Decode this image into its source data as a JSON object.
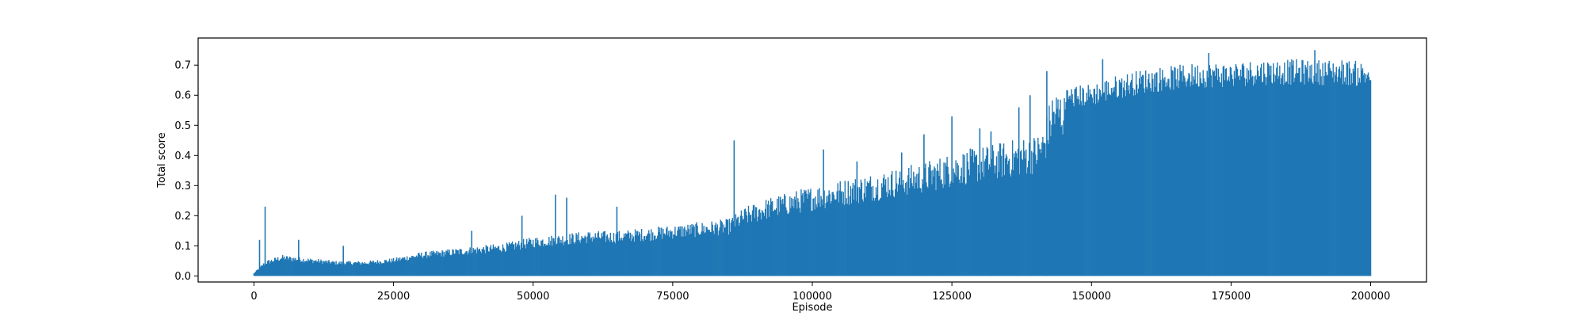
{
  "chart_data": {
    "type": "line",
    "title": "",
    "xlabel": "Episode",
    "ylabel": "Total score",
    "xlim": [
      -10000,
      210000
    ],
    "ylim": [
      -0.02,
      0.79
    ],
    "xticks": [
      0,
      25000,
      50000,
      75000,
      100000,
      125000,
      150000,
      175000,
      200000
    ],
    "xtick_labels": [
      "0",
      "25000",
      "50000",
      "75000",
      "100000",
      "125000",
      "150000",
      "175000",
      "200000"
    ],
    "yticks": [
      0.0,
      0.1,
      0.2,
      0.3,
      0.4,
      0.5,
      0.6,
      0.7
    ],
    "ytick_labels": [
      "0.0",
      "0.1",
      "0.2",
      "0.3",
      "0.4",
      "0.5",
      "0.6",
      "0.7"
    ],
    "grid": false,
    "legend": "none",
    "color": "#1f77b4",
    "episodes": 200000,
    "series": [
      {
        "baseline": 0.0,
        "upper_envelope": {
          "x": [
            0,
            2000,
            5000,
            10000,
            15000,
            20000,
            25000,
            30000,
            35000,
            40000,
            45000,
            50000,
            55000,
            60000,
            65000,
            70000,
            75000,
            80000,
            85000,
            88000,
            92000,
            96000,
            100000,
            105000,
            110000,
            115000,
            120000,
            125000,
            130000,
            135000,
            140000,
            141500,
            143000,
            146000,
            150000,
            155000,
            160000,
            165000,
            170000,
            175000,
            180000,
            185000,
            190000,
            195000,
            200000
          ],
          "y": [
            0.01,
            0.05,
            0.07,
            0.06,
            0.05,
            0.05,
            0.06,
            0.08,
            0.09,
            0.1,
            0.11,
            0.13,
            0.14,
            0.15,
            0.15,
            0.16,
            0.17,
            0.18,
            0.19,
            0.23,
            0.26,
            0.28,
            0.3,
            0.32,
            0.34,
            0.36,
            0.38,
            0.41,
            0.43,
            0.45,
            0.47,
            0.5,
            0.62,
            0.63,
            0.64,
            0.67,
            0.69,
            0.7,
            0.71,
            0.71,
            0.72,
            0.72,
            0.72,
            0.72,
            0.71
          ]
        },
        "spikes": [
          {
            "x": 2000,
            "y": 0.23
          },
          {
            "x": 1000,
            "y": 0.12
          },
          {
            "x": 8000,
            "y": 0.12
          },
          {
            "x": 16000,
            "y": 0.1
          },
          {
            "x": 39000,
            "y": 0.15
          },
          {
            "x": 48000,
            "y": 0.2
          },
          {
            "x": 54000,
            "y": 0.27
          },
          {
            "x": 56000,
            "y": 0.26
          },
          {
            "x": 65000,
            "y": 0.23
          },
          {
            "x": 86000,
            "y": 0.45
          },
          {
            "x": 102000,
            "y": 0.42
          },
          {
            "x": 108000,
            "y": 0.38
          },
          {
            "x": 116000,
            "y": 0.41
          },
          {
            "x": 120000,
            "y": 0.47
          },
          {
            "x": 125000,
            "y": 0.53
          },
          {
            "x": 130000,
            "y": 0.49
          },
          {
            "x": 132000,
            "y": 0.48
          },
          {
            "x": 137000,
            "y": 0.56
          },
          {
            "x": 139000,
            "y": 0.6
          },
          {
            "x": 142000,
            "y": 0.68
          },
          {
            "x": 152000,
            "y": 0.72
          },
          {
            "x": 171000,
            "y": 0.74
          },
          {
            "x": 190000,
            "y": 0.75
          }
        ]
      }
    ]
  }
}
